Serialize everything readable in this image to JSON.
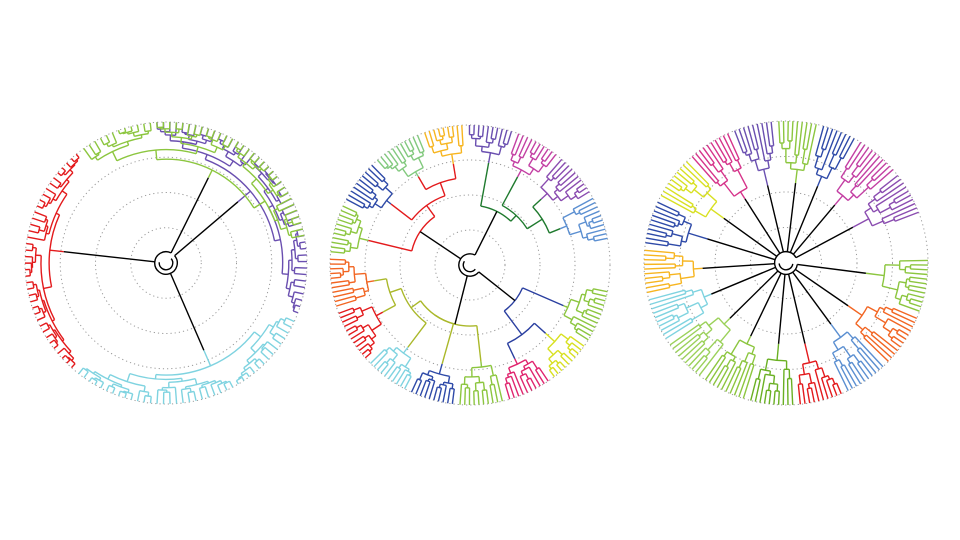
{
  "trees": [
    {
      "layout": "radial-dendrogram",
      "groups": [
        {
          "color": "#000000",
          "clades": [
            {
              "color": "#6a4fb0",
              "leaves": 44
            }
          ]
        },
        {
          "color": "#000000",
          "clades": [
            {
              "color": "#7fd3e0",
              "leaves": 40
            }
          ]
        },
        {
          "color": "#000000",
          "clades": [
            {
              "color": "#e31a1c",
              "leaves": 38
            }
          ]
        },
        {
          "color": "#000000",
          "clades": [
            {
              "color": "#8cc63f",
              "leaves": 44
            }
          ]
        }
      ]
    },
    {
      "layout": "radial-dendrogram",
      "groups": [
        {
          "color": "#2a3fa0",
          "clades": [
            {
              "color": "#8cc63f",
              "leaves": 12
            },
            {
              "color": "#d8e021",
              "leaves": 10
            },
            {
              "color": "#e0246e",
              "leaves": 10
            }
          ]
        },
        {
          "color": "#aab82a",
          "clades": [
            {
              "color": "#8cc63f",
              "leaves": 10
            },
            {
              "color": "#2e4aa8",
              "leaves": 10
            },
            {
              "color": "#7fd3e0",
              "leaves": 10
            },
            {
              "color": "#e31a1c",
              "leaves": 12
            },
            {
              "color": "#f26522",
              "leaves": 11
            }
          ]
        },
        {
          "color": "#e31a1c",
          "clades": [
            {
              "color": "#8cc63f",
              "leaves": 11
            },
            {
              "color": "#2e4aa8",
              "leaves": 10
            },
            {
              "color": "#82c97e",
              "leaves": 11
            },
            {
              "color": "#f7b520",
              "leaves": 9
            }
          ]
        },
        {
          "color": "#1f7a2e",
          "clades": [
            {
              "color": "#6a4fb0",
              "leaves": 10
            },
            {
              "color": "#c33fa3",
              "leaves": 10
            },
            {
              "color": "#8a4cb0",
              "leaves": 10
            },
            {
              "color": "#5b8fd1",
              "leaves": 10
            }
          ]
        }
      ]
    },
    {
      "layout": "radial-dendrogram",
      "groups": [
        {
          "color": "#000000",
          "clades": [
            {
              "color": "#8cc63f",
              "leaves": 12
            }
          ]
        },
        {
          "color": "#000000",
          "clades": [
            {
              "color": "#f26522",
              "leaves": 12
            }
          ]
        },
        {
          "color": "#000000",
          "clades": [
            {
              "color": "#5b8fd1",
              "leaves": 10
            }
          ]
        },
        {
          "color": "#000000",
          "clades": [
            {
              "color": "#e31a1c",
              "leaves": 10
            }
          ]
        },
        {
          "color": "#000000",
          "clades": [
            {
              "color": "#6ab023",
              "leaves": 10
            }
          ]
        },
        {
          "color": "#000000",
          "clades": [
            {
              "color": "#8cc63f",
              "leaves": 10
            }
          ]
        },
        {
          "color": "#000000",
          "clades": [
            {
              "color": "#9bd15a",
              "leaves": 10
            }
          ]
        },
        {
          "color": "#000000",
          "clades": [
            {
              "color": "#7fd3e0",
              "leaves": 10
            }
          ]
        },
        {
          "color": "#000000",
          "clades": [
            {
              "color": "#f7b520",
              "leaves": 10
            }
          ]
        },
        {
          "color": "#000000",
          "clades": [
            {
              "color": "#2e4aa8",
              "leaves": 10
            }
          ]
        },
        {
          "color": "#000000",
          "clades": [
            {
              "color": "#d8e021",
              "leaves": 10
            }
          ]
        },
        {
          "color": "#000000",
          "clades": [
            {
              "color": "#d6338a",
              "leaves": 10
            }
          ]
        },
        {
          "color": "#000000",
          "clades": [
            {
              "color": "#6a4fb0",
              "leaves": 9
            }
          ]
        },
        {
          "color": "#000000",
          "clades": [
            {
              "color": "#8cc63f",
              "leaves": 9
            }
          ]
        },
        {
          "color": "#000000",
          "clades": [
            {
              "color": "#2e4aa8",
              "leaves": 8
            }
          ]
        },
        {
          "color": "#000000",
          "clades": [
            {
              "color": "#c33fa3",
              "leaves": 10
            }
          ]
        },
        {
          "color": "#000000",
          "clades": [
            {
              "color": "#8a4cb0",
              "leaves": 10
            }
          ]
        }
      ]
    }
  ],
  "ring_color": "#9a9a9a"
}
